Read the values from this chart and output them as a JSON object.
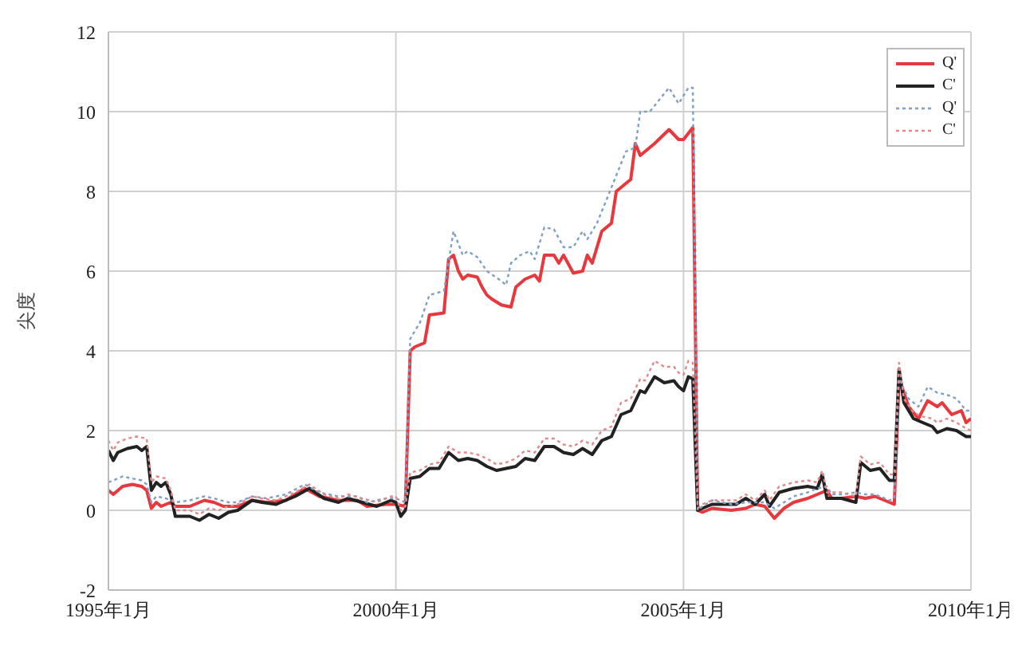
{
  "chart_data": {
    "type": "line",
    "ylabel": "尖度",
    "xlim": [
      "1995-01",
      "2010-01"
    ],
    "xticks": [
      {
        "value": "1995-01",
        "label": "1995年1月"
      },
      {
        "value": "2000-01",
        "label": "2000年1月"
      },
      {
        "value": "2005-01",
        "label": "2005年1月"
      },
      {
        "value": "2010-01",
        "label": "2010年1月"
      }
    ],
    "ylim": [
      -2,
      12
    ],
    "yticks": [
      -2,
      0,
      2,
      4,
      6,
      8,
      10,
      12
    ],
    "grid": true,
    "legend": "top right",
    "marker": "none",
    "series": [
      {
        "name": "Q'",
        "color": "#e8383d",
        "line_style": "solid",
        "x": [
          "1995-01",
          "1995-02",
          "1995-04",
          "1995-06",
          "1995-08",
          "1995-09",
          "1995-10",
          "1995-11",
          "1995-12",
          "1996-02",
          "1996-03",
          "1996-06",
          "1996-09",
          "1996-11",
          "1997-01",
          "1997-04",
          "1997-07",
          "1997-10",
          "1998-02",
          "1998-06",
          "1998-09",
          "1999-01",
          "1999-05",
          "1999-07",
          "1999-11",
          "2000-01",
          "2000-03",
          "2000-04",
          "2000-05",
          "2000-07",
          "2000-08",
          "2000-11",
          "2000-12",
          "2001-01",
          "2001-02",
          "2001-03",
          "2001-04",
          "2001-06",
          "2001-07",
          "2001-08",
          "2001-09",
          "2001-11",
          "2002-01",
          "2002-02",
          "2002-04",
          "2002-06",
          "2002-07",
          "2002-08",
          "2002-10",
          "2002-11",
          "2002-12",
          "2003-02",
          "2003-04",
          "2003-05",
          "2003-06",
          "2003-08",
          "2003-10",
          "2003-11",
          "2004-01",
          "2004-02",
          "2004-03",
          "2004-04",
          "2004-07",
          "2004-10",
          "2004-12",
          "2005-01",
          "2005-03",
          "2005-04",
          "2005-05",
          "2005-07",
          "2005-11",
          "2006-02",
          "2006-04",
          "2006-06",
          "2006-08",
          "2006-10",
          "2006-12",
          "2007-03",
          "2007-05",
          "2007-07",
          "2007-08",
          "2007-10",
          "2008-01",
          "2008-03",
          "2008-05",
          "2008-09",
          "2008-10",
          "2008-12",
          "2009-02",
          "2009-04",
          "2009-06",
          "2009-07",
          "2009-09",
          "2009-11",
          "2009-12",
          "2010-01"
        ],
        "values": [
          0.5,
          0.4,
          0.6,
          0.65,
          0.6,
          0.5,
          0.05,
          0.2,
          0.1,
          0.2,
          0.1,
          0.1,
          0.25,
          0.2,
          0.1,
          0.1,
          0.25,
          0.2,
          0.25,
          0.55,
          0.35,
          0.25,
          0.25,
          0.1,
          0.15,
          0.15,
          0.1,
          4.0,
          4.1,
          4.2,
          4.9,
          4.95,
          6.3,
          6.4,
          6.0,
          5.8,
          5.9,
          5.85,
          5.6,
          5.4,
          5.3,
          5.15,
          5.1,
          5.6,
          5.8,
          5.9,
          5.75,
          6.4,
          6.4,
          6.2,
          6.4,
          5.95,
          6.0,
          6.4,
          6.2,
          7.0,
          7.2,
          8.0,
          8.2,
          8.3,
          9.2,
          8.9,
          9.2,
          9.55,
          9.3,
          9.3,
          9.6,
          0.0,
          -0.05,
          0.05,
          0.0,
          0.05,
          0.15,
          0.1,
          -0.2,
          0.05,
          0.2,
          0.3,
          0.4,
          0.5,
          0.3,
          0.3,
          0.35,
          0.3,
          0.35,
          0.15,
          3.3,
          2.6,
          2.3,
          2.75,
          2.6,
          2.7,
          2.4,
          2.5,
          2.2,
          2.3
        ]
      },
      {
        "name": "C'",
        "color": "#222222",
        "line_style": "solid",
        "x": [
          "1995-01",
          "1995-02",
          "1995-03",
          "1995-05",
          "1995-07",
          "1995-08",
          "1995-09",
          "1995-10",
          "1995-11",
          "1995-12",
          "1996-01",
          "1996-02",
          "1996-03",
          "1996-06",
          "1996-08",
          "1996-10",
          "1996-12",
          "1997-02",
          "1997-04",
          "1997-07",
          "1997-09",
          "1997-12",
          "1998-04",
          "1998-07",
          "1998-10",
          "1999-01",
          "1999-03",
          "1999-06",
          "1999-09",
          "1999-12",
          "2000-01",
          "2000-02",
          "2000-03",
          "2000-04",
          "2000-06",
          "2000-08",
          "2000-10",
          "2000-12",
          "2001-02",
          "2001-04",
          "2001-06",
          "2001-08",
          "2001-10",
          "2001-12",
          "2002-02",
          "2002-04",
          "2002-06",
          "2002-08",
          "2002-10",
          "2002-12",
          "2003-02",
          "2003-04",
          "2003-06",
          "2003-08",
          "2003-10",
          "2003-12",
          "2004-02",
          "2004-04",
          "2004-05",
          "2004-07",
          "2004-09",
          "2004-11",
          "2004-12",
          "2005-01",
          "2005-02",
          "2005-03",
          "2005-04",
          "2005-05",
          "2005-07",
          "2005-10",
          "2005-12",
          "2006-02",
          "2006-04",
          "2006-06",
          "2006-07",
          "2006-09",
          "2006-12",
          "2007-03",
          "2007-05",
          "2007-06",
          "2007-07",
          "2007-10",
          "2008-01",
          "2008-02",
          "2008-04",
          "2008-06",
          "2008-08",
          "2008-09",
          "2008-10",
          "2008-11",
          "2009-01",
          "2009-03",
          "2009-05",
          "2009-06",
          "2009-08",
          "2009-10",
          "2009-12",
          "2010-01"
        ],
        "values": [
          1.5,
          1.25,
          1.45,
          1.55,
          1.6,
          1.5,
          1.6,
          0.5,
          0.7,
          0.6,
          0.7,
          0.4,
          -0.15,
          -0.15,
          -0.25,
          -0.1,
          -0.2,
          -0.05,
          0.0,
          0.25,
          0.2,
          0.15,
          0.35,
          0.55,
          0.3,
          0.2,
          0.3,
          0.2,
          0.1,
          0.25,
          0.2,
          -0.15,
          0.0,
          0.8,
          0.85,
          1.05,
          1.05,
          1.45,
          1.25,
          1.3,
          1.25,
          1.1,
          1.0,
          1.05,
          1.1,
          1.3,
          1.25,
          1.6,
          1.6,
          1.45,
          1.4,
          1.55,
          1.4,
          1.75,
          1.85,
          2.4,
          2.5,
          3.0,
          2.95,
          3.35,
          3.2,
          3.25,
          3.1,
          3.0,
          3.35,
          3.3,
          0.0,
          0.05,
          0.15,
          0.15,
          0.15,
          0.3,
          0.15,
          0.4,
          0.1,
          0.45,
          0.55,
          0.6,
          0.55,
          0.9,
          0.3,
          0.3,
          0.2,
          1.2,
          1.0,
          1.05,
          0.75,
          0.75,
          3.55,
          2.7,
          2.3,
          2.2,
          2.1,
          1.95,
          2.05,
          2.0,
          1.85,
          1.85
        ]
      },
      {
        "name": "Q'",
        "color": "#7f9fc4",
        "line_style": "dotted",
        "x": [
          "1995-01",
          "1995-04",
          "1995-06",
          "1995-08",
          "1995-09",
          "1995-10",
          "1995-11",
          "1996-01",
          "1996-03",
          "1996-06",
          "1996-09",
          "1996-11",
          "1997-02",
          "1997-04",
          "1997-07",
          "1997-10",
          "1998-02",
          "1998-06",
          "1998-09",
          "1999-01",
          "1999-05",
          "1999-07",
          "1999-11",
          "2000-01",
          "2000-03",
          "2000-04",
          "2000-05",
          "2000-06",
          "2000-08",
          "2000-11",
          "2001-01",
          "2001-03",
          "2001-04",
          "2001-06",
          "2001-08",
          "2001-11",
          "2001-12",
          "2002-01",
          "2002-03",
          "2002-05",
          "2002-06",
          "2002-08",
          "2002-10",
          "2002-12",
          "2003-02",
          "2003-04",
          "2003-05",
          "2003-07",
          "2003-09",
          "2003-11",
          "2004-01",
          "2004-03",
          "2004-04",
          "2004-06",
          "2004-08",
          "2004-10",
          "2004-12",
          "2005-02",
          "2005-03",
          "2005-04",
          "2005-05",
          "2005-07",
          "2005-11",
          "2006-02",
          "2006-06",
          "2006-08",
          "2006-10",
          "2006-12",
          "2007-03",
          "2007-05",
          "2007-07",
          "2007-08",
          "2007-10",
          "2008-01",
          "2008-03",
          "2008-05",
          "2008-08",
          "2008-09",
          "2008-10",
          "2008-12",
          "2009-02",
          "2009-04",
          "2009-06",
          "2009-08",
          "2009-10",
          "2009-12",
          "2010-01"
        ],
        "values": [
          0.7,
          0.85,
          0.8,
          0.75,
          0.65,
          0.2,
          0.35,
          0.3,
          0.2,
          0.25,
          0.35,
          0.3,
          0.2,
          0.2,
          0.35,
          0.3,
          0.4,
          0.65,
          0.45,
          0.35,
          0.35,
          0.2,
          0.3,
          0.3,
          0.2,
          4.3,
          4.5,
          4.7,
          5.4,
          5.5,
          7.0,
          6.4,
          6.5,
          6.35,
          6.0,
          5.75,
          5.65,
          6.2,
          6.4,
          6.5,
          6.3,
          7.1,
          7.05,
          6.6,
          6.6,
          7.0,
          6.8,
          7.2,
          7.8,
          8.4,
          9.0,
          9.1,
          10.0,
          10.0,
          10.3,
          10.6,
          10.2,
          10.6,
          10.6,
          0.0,
          0.1,
          0.25,
          0.15,
          0.2,
          0.2,
          0.05,
          0.2,
          0.35,
          0.45,
          0.55,
          0.6,
          0.4,
          0.4,
          0.45,
          0.4,
          0.4,
          0.25,
          0.3,
          3.3,
          2.8,
          2.6,
          3.1,
          2.95,
          2.9,
          2.8,
          2.5,
          2.5
        ]
      },
      {
        "name": "C'",
        "color": "#e08a8a",
        "line_style": "dotted",
        "x": [
          "1995-01",
          "1995-02",
          "1995-03",
          "1995-05",
          "1995-07",
          "1995-09",
          "1995-10",
          "1995-11",
          "1996-01",
          "1996-02",
          "1996-03",
          "1996-06",
          "1996-08",
          "1996-10",
          "1996-12",
          "1997-02",
          "1997-04",
          "1997-07",
          "1997-09",
          "1997-12",
          "1998-04",
          "1998-07",
          "1998-10",
          "1999-01",
          "1999-03",
          "1999-06",
          "1999-09",
          "1999-12",
          "2000-01",
          "2000-02",
          "2000-03",
          "2000-04",
          "2000-06",
          "2000-08",
          "2000-10",
          "2000-12",
          "2001-02",
          "2001-04",
          "2001-06",
          "2001-08",
          "2001-10",
          "2001-12",
          "2002-02",
          "2002-04",
          "2002-06",
          "2002-08",
          "2002-10",
          "2002-12",
          "2003-02",
          "2003-04",
          "2003-06",
          "2003-08",
          "2003-10",
          "2003-12",
          "2004-02",
          "2004-04",
          "2004-05",
          "2004-07",
          "2004-09",
          "2004-11",
          "2004-12",
          "2005-01",
          "2005-02",
          "2005-03",
          "2005-04",
          "2005-05",
          "2005-07",
          "2005-10",
          "2005-12",
          "2006-02",
          "2006-04",
          "2006-06",
          "2006-07",
          "2006-09",
          "2006-12",
          "2007-03",
          "2007-05",
          "2007-06",
          "2007-07",
          "2007-10",
          "2008-01",
          "2008-02",
          "2008-04",
          "2008-06",
          "2008-08",
          "2008-09",
          "2008-10",
          "2008-11",
          "2009-01",
          "2009-03",
          "2009-05",
          "2009-06",
          "2009-08",
          "2009-10",
          "2009-12",
          "2010-01"
        ],
        "values": [
          1.75,
          1.5,
          1.7,
          1.8,
          1.85,
          1.8,
          0.7,
          0.85,
          0.8,
          0.5,
          0.0,
          0.0,
          -0.1,
          0.05,
          0.0,
          0.1,
          0.15,
          0.35,
          0.3,
          0.25,
          0.45,
          0.65,
          0.4,
          0.3,
          0.4,
          0.3,
          0.2,
          0.35,
          0.35,
          0.0,
          0.1,
          0.95,
          1.0,
          1.15,
          1.2,
          1.6,
          1.45,
          1.45,
          1.4,
          1.3,
          1.15,
          1.2,
          1.3,
          1.5,
          1.45,
          1.8,
          1.8,
          1.65,
          1.6,
          1.75,
          1.65,
          2.0,
          2.1,
          2.7,
          2.8,
          3.3,
          3.25,
          3.75,
          3.6,
          3.6,
          3.45,
          3.4,
          3.75,
          3.7,
          0.05,
          0.15,
          0.25,
          0.25,
          0.25,
          0.4,
          0.25,
          0.5,
          0.25,
          0.6,
          0.7,
          0.75,
          0.7,
          1.0,
          0.45,
          0.45,
          0.35,
          1.35,
          1.15,
          1.2,
          0.9,
          0.9,
          3.7,
          2.8,
          2.45,
          2.35,
          2.3,
          2.2,
          2.3,
          2.2,
          2.05,
          2.0
        ]
      }
    ]
  }
}
